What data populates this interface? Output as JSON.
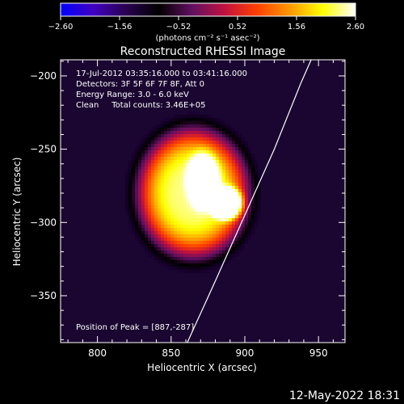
{
  "chart_data": {
    "type": "heatmap",
    "title": "Reconstructed RHESSI Image",
    "xlabel": "Heliocentric X (arcsec)",
    "ylabel": "Heliocentric Y (arcsec)",
    "xlim": [
      775,
      968
    ],
    "ylim": [
      -382,
      -189
    ],
    "x_ticks": [
      800,
      850,
      900,
      950
    ],
    "x_tick_labels": [
      "800",
      "850",
      "900",
      "950"
    ],
    "y_ticks": [
      -200,
      -250,
      -300,
      -350
    ],
    "y_tick_labels": [
      "−200",
      "−250",
      "−300",
      "−350"
    ],
    "colorbar": {
      "min": -2.6,
      "max": 2.6,
      "ticks": [
        -2.6,
        -1.56,
        -0.52,
        0.52,
        1.56,
        2.6
      ],
      "tick_labels": [
        "−2.60",
        "−1.56",
        "−0.52",
        "0.52",
        "1.56",
        "2.60"
      ],
      "unit_label": "(photons cm⁻² s⁻¹ asec⁻²)"
    },
    "annotations": [
      "17-Jul-2012 03:35:16.000 to 03:41:16.000",
      "Detectors: 3F 5F 6F 7F 8F, Att 0",
      "Energy Range: 3.0 - 6.0 keV",
      "Clean     Total counts: 3.46E+05"
    ],
    "peak_text": "Position of Peak = [887,-287]",
    "peak": [
      887,
      -287
    ],
    "limb_line": [
      [
        861,
        -382
      ],
      [
        880,
        -340
      ],
      [
        900,
        -295
      ],
      [
        920,
        -250
      ],
      [
        938,
        -205
      ],
      [
        945,
        -189
      ]
    ],
    "blobs": [
      {
        "x": 865,
        "y": -280,
        "sx": 36,
        "sy": 42,
        "amp": 1.5
      },
      {
        "x": 888,
        "y": -287,
        "sx": 11,
        "sy": 11,
        "amp": 1.05
      },
      {
        "x": 872,
        "y": -271,
        "sx": 11,
        "sy": 19,
        "amp": 0.55
      }
    ],
    "colors": {
      "accent_line": "#ffffff",
      "colormap": [
        "#0000ff",
        "#4000c0",
        "#2a0050",
        "#000000",
        "#601060",
        "#c01040",
        "#ff4000",
        "#ff9900",
        "#ffff00",
        "#ffffff"
      ]
    }
  },
  "footer": {
    "timestamp": "12-May-2022 18:31"
  }
}
